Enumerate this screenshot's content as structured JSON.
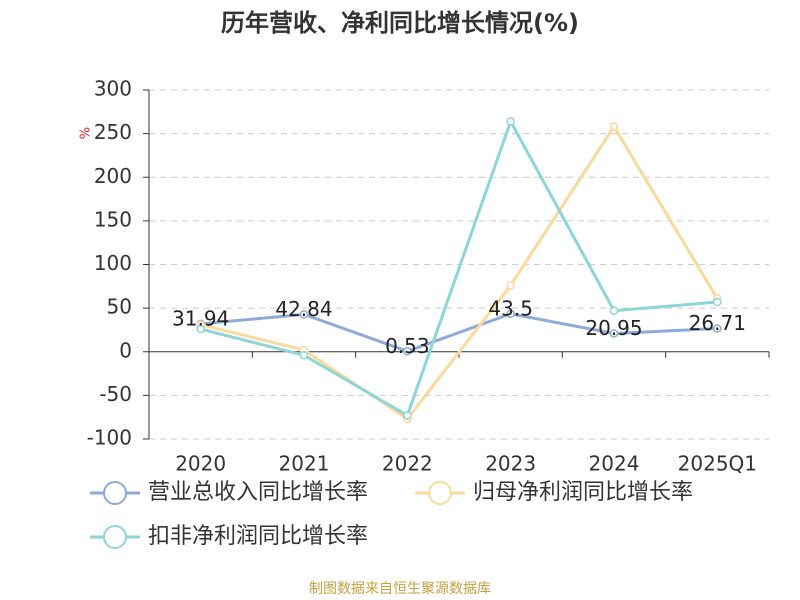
{
  "chart_data": {
    "type": "line",
    "title": "历年营收、净利同比增长情况(%)",
    "y_label": "%",
    "categories": [
      "2020",
      "2021",
      "2022",
      "2023",
      "2024",
      "2025Q1"
    ],
    "series": [
      {
        "name": "营业总收入同比增长率",
        "color": "#8eaad8",
        "values": [
          31.94,
          42.84,
          0.53,
          43.5,
          20.95,
          26.71
        ],
        "show_labels": true
      },
      {
        "name": "归母净利润同比增长率",
        "color": "#fbd99b",
        "values": [
          31,
          2,
          -77,
          76,
          258,
          61
        ]
      },
      {
        "name": "扣非净利润同比增长率",
        "color": "#8dd5d6",
        "values": [
          26,
          -4,
          -73,
          264,
          47,
          57
        ]
      }
    ],
    "ylim": [
      -100,
      300
    ],
    "yticks": [
      -100,
      -50,
      0,
      50,
      100,
      150,
      200,
      250,
      300
    ],
    "grid": true,
    "legend": "bottom",
    "source": "制图数据来自恒生聚源数据库"
  }
}
